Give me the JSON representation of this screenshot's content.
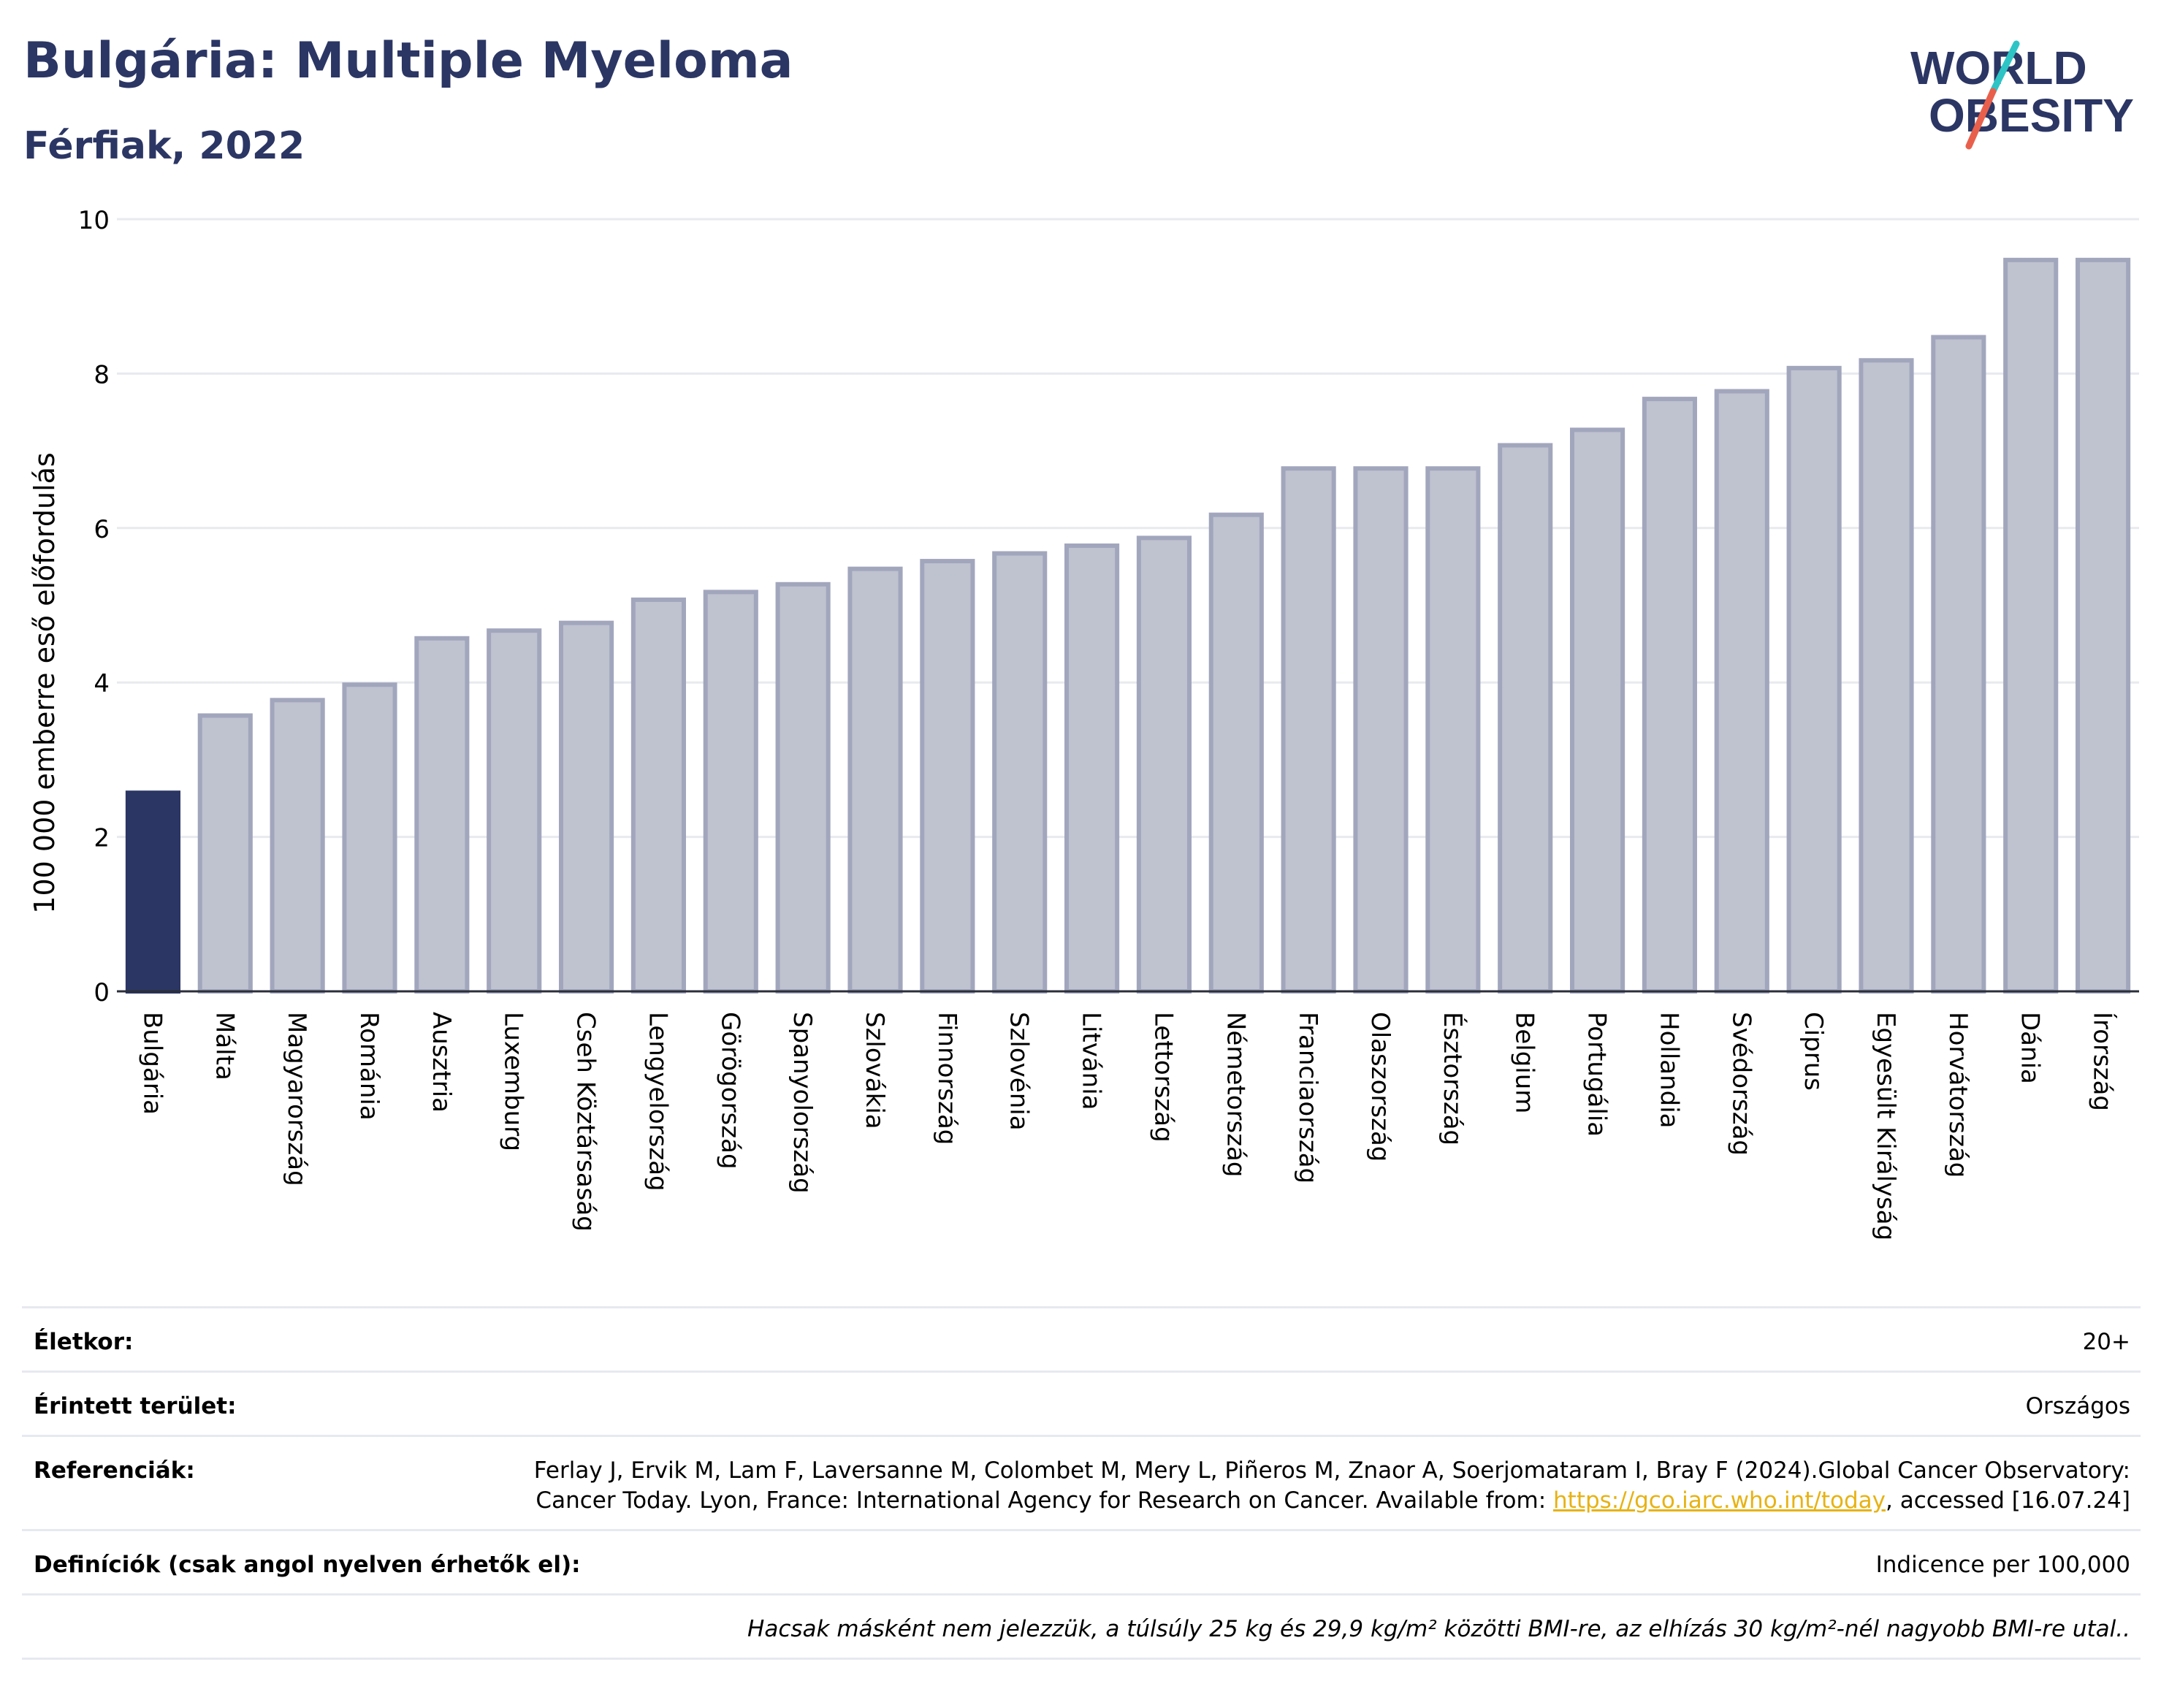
{
  "header": {
    "title": "Bulgária: Multiple Myeloma",
    "subtitle": "Férfiak, 2022"
  },
  "logo": {
    "line1": "WORLD",
    "line2": "OBESITY"
  },
  "colors": {
    "highlight_bar": "#2b3664",
    "other_bar_fill": "#bfc2cf",
    "other_bar_stroke": "#a2a6bd",
    "title": "#2b3664",
    "gridline": "#e8eaee",
    "link": "#e7b214"
  },
  "chart_data": {
    "type": "bar",
    "title": "Bulgária: Multiple Myeloma",
    "subtitle": "Férfiak, 2022",
    "ylabel": "100 000 emberre eső előfordulás",
    "xlabel": "",
    "ylim": [
      0,
      10
    ],
    "yticks": [
      0,
      2,
      4,
      6,
      8,
      10
    ],
    "grid": true,
    "highlight": "Bulgária",
    "categories": [
      "Bulgária",
      "Málta",
      "Magyarország",
      "Románia",
      "Ausztria",
      "Luxemburg",
      "Cseh Köztársaság",
      "Lengyelország",
      "Görögország",
      "Spanyolország",
      "Szlovákia",
      "Finnország",
      "Szlovénia",
      "Litvánia",
      "Lettország",
      "Németország",
      "Franciaország",
      "Olaszország",
      "Észtország",
      "Belgium",
      "Portugália",
      "Hollandia",
      "Svédország",
      "Ciprus",
      "Egyesült Királyság",
      "Horvátország",
      "Dánia",
      "Írország"
    ],
    "values": [
      2.6,
      3.6,
      3.8,
      4.0,
      4.6,
      4.7,
      4.8,
      5.1,
      5.2,
      5.3,
      5.5,
      5.6,
      5.7,
      5.8,
      5.9,
      6.2,
      6.8,
      6.8,
      6.8,
      7.1,
      7.3,
      7.7,
      7.8,
      8.1,
      8.2,
      8.5,
      9.5,
      9.5
    ]
  },
  "meta": {
    "age_label": "Életkor:",
    "age_value": "20+",
    "area_label": "Érintett terület:",
    "area_value": "Országos",
    "refs_label": "Referenciák:",
    "refs_text_1": "Ferlay J, Ervik M, Lam F, Laversanne M, Colombet M, Mery L, Piñeros M, Znaor A, Soerjomataram I, Bray F (2024).Global Cancer Observatory: Cancer Today. Lyon, France: International Agency for Research on Cancer. Available from: ",
    "refs_link": "https://gco.iarc.who.int/today",
    "refs_text_2": ", accessed [16.07.24]",
    "defs_label": "Definíciók (csak angol nyelven érhetők el):",
    "defs_value": "Indicence per 100,000",
    "note": "Hacsak másként nem jelezzük, a túlsúly 25 kg és 29,9 kg/m² közötti BMI-re, az elhízás 30 kg/m²-nél nagyobb BMI-re utal.."
  }
}
